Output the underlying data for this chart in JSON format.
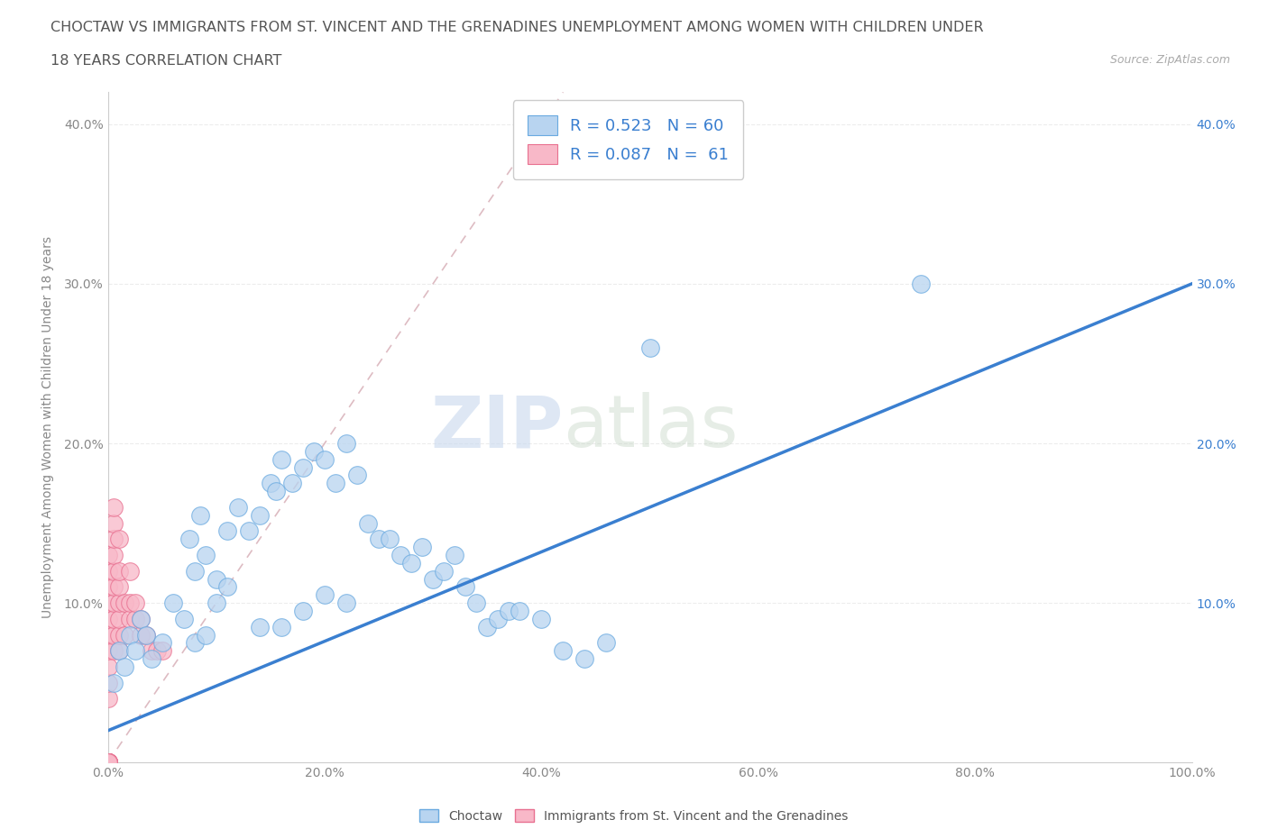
{
  "title_line1": "CHOCTAW VS IMMIGRANTS FROM ST. VINCENT AND THE GRENADINES UNEMPLOYMENT AMONG WOMEN WITH CHILDREN UNDER",
  "title_line2": "18 YEARS CORRELATION CHART",
  "source": "Source: ZipAtlas.com",
  "ylabel": "Unemployment Among Women with Children Under 18 years",
  "watermark_part1": "ZIP",
  "watermark_part2": "atlas",
  "legend_entries": [
    {
      "label": "Choctaw",
      "R": 0.523,
      "N": 60,
      "color": "#b8d4f0",
      "edge_color": "#6aaae0",
      "line_color": "#3a7fd0"
    },
    {
      "label": "Immigrants from St. Vincent and the Grenadines",
      "R": 0.087,
      "N": 61,
      "color": "#f8b8c8",
      "edge_color": "#e87090",
      "line_color": "#e87090"
    }
  ],
  "xlim": [
    0.0,
    1.0
  ],
  "ylim": [
    0.0,
    0.42
  ],
  "xticks": [
    0.0,
    0.2,
    0.4,
    0.6,
    0.8,
    1.0
  ],
  "yticks": [
    0.0,
    0.1,
    0.2,
    0.3,
    0.4
  ],
  "xticklabels": [
    "0.0%",
    "20.0%",
    "40.0%",
    "60.0%",
    "80.0%",
    "100.0%"
  ],
  "yticklabels_left": [
    "",
    "10.0%",
    "20.0%",
    "30.0%",
    "40.0%"
  ],
  "yticklabels_right": [
    "10.0%",
    "20.0%",
    "30.0%",
    "40.0%"
  ],
  "diag_line_color": "#d8b0b8",
  "background_color": "#ffffff",
  "title_color": "#555555",
  "tick_color": "#888888",
  "grid_color": "#e8e8e8",
  "right_tick_color": "#3a7fd0",
  "choctaw_x": [
    0.005,
    0.01,
    0.015,
    0.02,
    0.025,
    0.03,
    0.035,
    0.04,
    0.05,
    0.06,
    0.07,
    0.075,
    0.08,
    0.085,
    0.09,
    0.1,
    0.11,
    0.12,
    0.13,
    0.14,
    0.15,
    0.155,
    0.16,
    0.17,
    0.18,
    0.19,
    0.2,
    0.21,
    0.22,
    0.23,
    0.24,
    0.25,
    0.26,
    0.27,
    0.28,
    0.29,
    0.3,
    0.31,
    0.32,
    0.33,
    0.34,
    0.35,
    0.36,
    0.37,
    0.38,
    0.4,
    0.42,
    0.44,
    0.46,
    0.5,
    0.08,
    0.09,
    0.1,
    0.11,
    0.14,
    0.16,
    0.18,
    0.2,
    0.22,
    0.75
  ],
  "choctaw_y": [
    0.05,
    0.07,
    0.06,
    0.08,
    0.07,
    0.09,
    0.08,
    0.065,
    0.075,
    0.1,
    0.09,
    0.14,
    0.12,
    0.155,
    0.13,
    0.115,
    0.145,
    0.16,
    0.145,
    0.155,
    0.175,
    0.17,
    0.19,
    0.175,
    0.185,
    0.195,
    0.19,
    0.175,
    0.2,
    0.18,
    0.15,
    0.14,
    0.14,
    0.13,
    0.125,
    0.135,
    0.115,
    0.12,
    0.13,
    0.11,
    0.1,
    0.085,
    0.09,
    0.095,
    0.095,
    0.09,
    0.07,
    0.065,
    0.075,
    0.26,
    0.075,
    0.08,
    0.1,
    0.11,
    0.085,
    0.085,
    0.095,
    0.105,
    0.1,
    0.3
  ],
  "immigrants_x": [
    0.0,
    0.0,
    0.0,
    0.0,
    0.0,
    0.0,
    0.0,
    0.0,
    0.0,
    0.0,
    0.0,
    0.0,
    0.0,
    0.0,
    0.0,
    0.0,
    0.0,
    0.0,
    0.0,
    0.0,
    0.005,
    0.005,
    0.005,
    0.005,
    0.005,
    0.005,
    0.005,
    0.005,
    0.005,
    0.005,
    0.01,
    0.01,
    0.01,
    0.01,
    0.01,
    0.01,
    0.01,
    0.015,
    0.015,
    0.02,
    0.02,
    0.02,
    0.025,
    0.025,
    0.03,
    0.03,
    0.035,
    0.04,
    0.045,
    0.05,
    0.0,
    0.0,
    0.0,
    0.0,
    0.0,
    0.0,
    0.0,
    0.0,
    0.0,
    0.0,
    0.0
  ],
  "immigrants_y": [
    0.0,
    0.0,
    0.0,
    0.0,
    0.0,
    0.0,
    0.0,
    0.0,
    0.0,
    0.0,
    0.04,
    0.05,
    0.06,
    0.07,
    0.08,
    0.09,
    0.1,
    0.11,
    0.12,
    0.13,
    0.07,
    0.08,
    0.09,
    0.1,
    0.11,
    0.12,
    0.13,
    0.14,
    0.15,
    0.16,
    0.07,
    0.08,
    0.09,
    0.1,
    0.11,
    0.12,
    0.14,
    0.08,
    0.1,
    0.09,
    0.1,
    0.12,
    0.09,
    0.1,
    0.08,
    0.09,
    0.08,
    0.07,
    0.07,
    0.07,
    0.0,
    0.0,
    0.0,
    0.0,
    0.0,
    0.0,
    0.0,
    0.0,
    0.0,
    0.0,
    0.0
  ]
}
